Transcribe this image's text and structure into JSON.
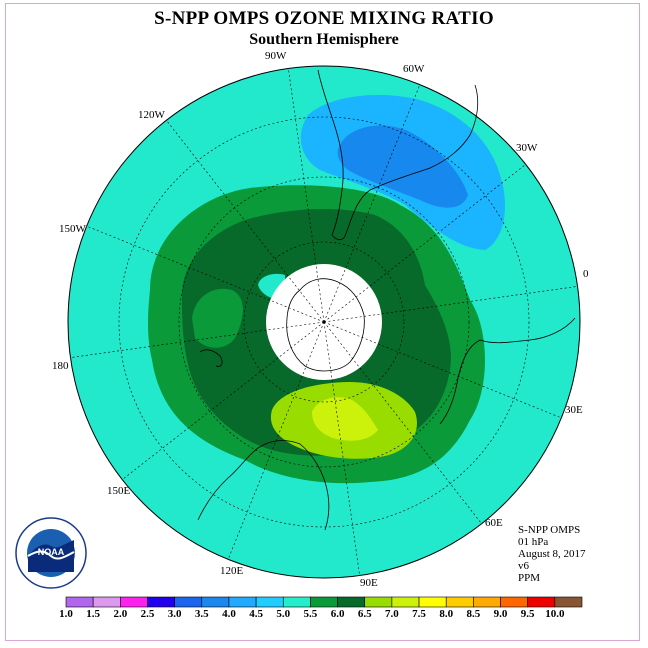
{
  "header": {
    "title": "S-NPP OMPS OZONE MIXING RATIO",
    "subtitle": "Southern Hemisphere"
  },
  "map": {
    "projection": "south-polar-stereographic",
    "longitude_labels": [
      "90W",
      "60W",
      "30W",
      "0",
      "30E",
      "60E",
      "90E",
      "120E",
      "150E",
      "180",
      "150W",
      "120W"
    ],
    "regions": [
      {
        "level": "4.5-5.0",
        "color": "#22e8cc",
        "description": "background"
      },
      {
        "level": "5.0-5.5",
        "color": "#0a9a3a"
      },
      {
        "level": "5.5-6.0",
        "color": "#076a2a"
      },
      {
        "level": "4.0-4.5",
        "color": "#1ab4ff"
      },
      {
        "level": "3.5-4.0",
        "color": "#1688ee"
      },
      {
        "level": "6.0-6.5",
        "color": "#99dd00"
      },
      {
        "level": "6.5-7.0",
        "color": "#ccf20c"
      },
      {
        "level": "no data",
        "color": "#ffffff",
        "description": "polar night"
      }
    ]
  },
  "info": {
    "lines": [
      "S-NPP OMPS",
      "01 hPa",
      "August 8, 2017",
      "v6",
      "PPM"
    ]
  },
  "colorbar": {
    "labels": [
      "1.0",
      "1.5",
      "2.0",
      "2.5",
      "3.0",
      "3.5",
      "4.0",
      "4.5",
      "5.0",
      "5.5",
      "6.0",
      "6.5",
      "7.0",
      "7.5",
      "8.0",
      "8.5",
      "9.0",
      "9.5",
      "10.0"
    ],
    "colors": [
      "#b266ee",
      "#dd99ee",
      "#ff22ee",
      "#2200ee",
      "#1a66ee",
      "#1a88ee",
      "#22aaff",
      "#22ccff",
      "#22eecc",
      "#0a9a3a",
      "#076a2a",
      "#99dd00",
      "#ccf20c",
      "#ffff00",
      "#ffcc00",
      "#ffaa00",
      "#ff6600",
      "#ee0000",
      "#885533"
    ]
  },
  "logo": {
    "text": "NOAA",
    "ring_text": "NATIONAL OCEANIC AND ATMOSPHERIC ADMINISTRATION · U.S. DEPARTMENT OF COMMERCE"
  }
}
